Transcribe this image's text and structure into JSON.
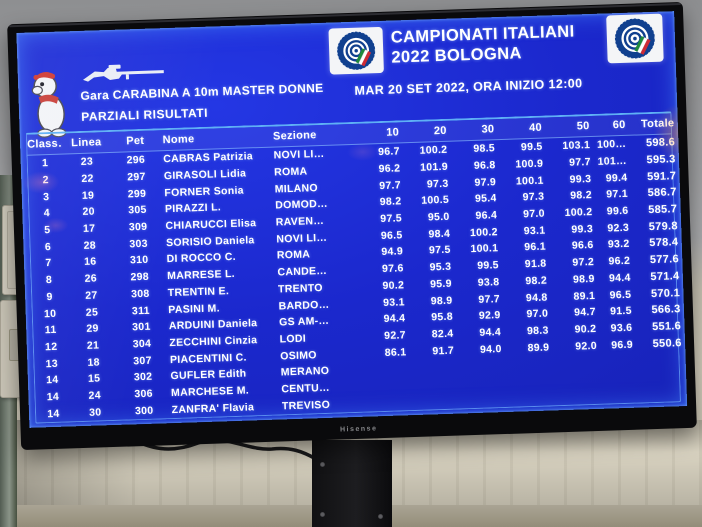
{
  "tv": {
    "brand": "Hisense"
  },
  "screen": {
    "event": {
      "line1": "CAMPIONATI ITALIANI",
      "line2": "2022 BOLOGNA"
    },
    "competition": {
      "line1": "Gara CARABINA A 10m MASTER DONNE",
      "line2": "PARZIALI RISULTATI"
    },
    "session_info": "MAR 20 SET 2022, ORA INIZIO 12:00",
    "icons": {
      "left_logo": "target-logo-icon",
      "right_logo": "target-logo-icon",
      "rifle": "rifle-icon",
      "mascot": "mascot-icon"
    },
    "colors": {
      "screen_blue": "#1c2bd0",
      "accent_line": "#5fb0f5",
      "text": "#ffffff",
      "logo_blue": "#10408f",
      "flag_green": "#1e8a3c",
      "flag_red": "#cf2b36",
      "bezel_black": "#0a0a0c"
    }
  },
  "results": {
    "columns": [
      "Class…",
      "Linea",
      "Pet",
      "Nome",
      "Sezione",
      "10",
      "20",
      "30",
      "40",
      "50",
      "60",
      "Totale"
    ],
    "column_keys": [
      "class",
      "linea",
      "pet",
      "nome",
      "sezione",
      "s10",
      "s20",
      "s30",
      "s40",
      "s50",
      "s60",
      "totale"
    ],
    "rows": [
      [
        "1",
        "23",
        "296",
        "CABRAS Patrizia",
        "NOVI LI…",
        "96.7",
        "100.2",
        "98.5",
        "99.5",
        "103.1",
        "100…",
        "598.6"
      ],
      [
        "2",
        "22",
        "297",
        "GIRASOLI Lidia",
        "ROMA",
        "96.2",
        "101.9",
        "96.8",
        "100.9",
        "97.7",
        "101…",
        "595.3"
      ],
      [
        "3",
        "19",
        "299",
        "FORNER Sonia",
        "MILANO",
        "97.7",
        "97.3",
        "97.9",
        "100.1",
        "99.3",
        "99.4",
        "591.7"
      ],
      [
        "4",
        "20",
        "305",
        "PIRAZZI L.",
        "DOMOD…",
        "98.2",
        "100.5",
        "95.4",
        "97.3",
        "98.2",
        "97.1",
        "586.7"
      ],
      [
        "5",
        "17",
        "309",
        "CHIARUCCI Elisa",
        "RAVEN…",
        "97.5",
        "95.0",
        "96.4",
        "97.0",
        "100.2",
        "99.6",
        "585.7"
      ],
      [
        "6",
        "28",
        "303",
        "SORISIO Daniela",
        "NOVI LI…",
        "96.5",
        "98.4",
        "100.2",
        "93.1",
        "99.3",
        "92.3",
        "579.8"
      ],
      [
        "7",
        "16",
        "310",
        "DI ROCCO C.",
        "ROMA",
        "94.9",
        "97.5",
        "100.1",
        "96.1",
        "96.6",
        "93.2",
        "578.4"
      ],
      [
        "8",
        "26",
        "298",
        "MARRESE L.",
        "CANDE…",
        "97.6",
        "95.3",
        "99.5",
        "91.8",
        "97.2",
        "96.2",
        "577.6"
      ],
      [
        "9",
        "27",
        "308",
        "TRENTIN E.",
        "TRENTO",
        "90.2",
        "95.9",
        "93.8",
        "98.2",
        "98.9",
        "94.4",
        "571.4"
      ],
      [
        "10",
        "25",
        "311",
        "PASINI M.",
        "BARDO…",
        "93.1",
        "98.9",
        "97.7",
        "94.8",
        "89.1",
        "96.5",
        "570.1"
      ],
      [
        "11",
        "29",
        "301",
        "ARDUINI Daniela",
        "GS AM-…",
        "94.4",
        "95.8",
        "92.9",
        "97.0",
        "94.7",
        "91.5",
        "566.3"
      ],
      [
        "12",
        "21",
        "304",
        "ZECCHINI Cinzia",
        "LODI",
        "92.7",
        "82.4",
        "94.4",
        "98.3",
        "90.2",
        "93.6",
        "551.6"
      ],
      [
        "13",
        "18",
        "307",
        "PIACENTINI C.",
        "OSIMO",
        "86.1",
        "91.7",
        "94.0",
        "89.9",
        "92.0",
        "96.9",
        "550.6"
      ],
      [
        "14",
        "15",
        "302",
        "GUFLER Edith",
        "MERANO",
        "",
        "",
        "",
        "",
        "",
        "",
        ""
      ],
      [
        "14",
        "24",
        "306",
        "MARCHESE M.",
        "CENTU…",
        "",
        "",
        "",
        "",
        "",
        "",
        ""
      ],
      [
        "14",
        "30",
        "300",
        "ZANFRA' Flavia",
        "TREVISO",
        "",
        "",
        "",
        "",
        "",
        "",
        ""
      ]
    ]
  }
}
